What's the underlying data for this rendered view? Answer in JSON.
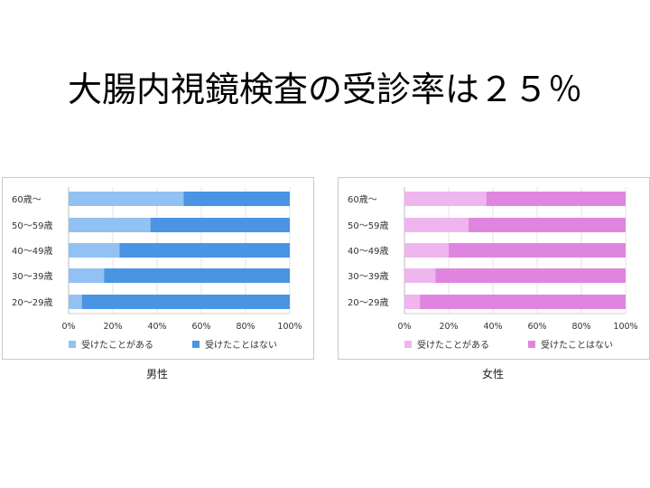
{
  "slide": {
    "title": "大腸内視鏡検査の受診率は２５％"
  },
  "chart_data": [
    {
      "type": "bar",
      "orientation": "horizontal",
      "stacked": true,
      "caption": "男性",
      "categories": [
        "60歳～",
        "50～59歳",
        "40～49歳",
        "30～39歳",
        "20～29歳"
      ],
      "series": [
        {
          "name": "受けたことがある",
          "values": [
            52,
            37,
            23,
            16,
            6
          ],
          "color": "#92c1f3"
        },
        {
          "name": "受けたことはない",
          "values": [
            48,
            63,
            77,
            84,
            94
          ],
          "color": "#4a94e4"
        }
      ],
      "xticks": [
        "0%",
        "20%",
        "40%",
        "60%",
        "80%",
        "100%"
      ],
      "xlim": [
        0,
        100
      ],
      "grid": true,
      "legend": "bottom"
    },
    {
      "type": "bar",
      "orientation": "horizontal",
      "stacked": true,
      "caption": "女性",
      "categories": [
        "60歳～",
        "50～59歳",
        "40～49歳",
        "30～39歳",
        "20～29歳"
      ],
      "series": [
        {
          "name": "受けたことがある",
          "values": [
            37,
            29,
            20,
            14,
            7
          ],
          "color": "#efb5ee"
        },
        {
          "name": "受けたことはない",
          "values": [
            63,
            71,
            80,
            86,
            93
          ],
          "color": "#e085df"
        }
      ],
      "xticks": [
        "0%",
        "20%",
        "40%",
        "60%",
        "80%",
        "100%"
      ],
      "xlim": [
        0,
        100
      ],
      "grid": true,
      "legend": "bottom"
    }
  ]
}
